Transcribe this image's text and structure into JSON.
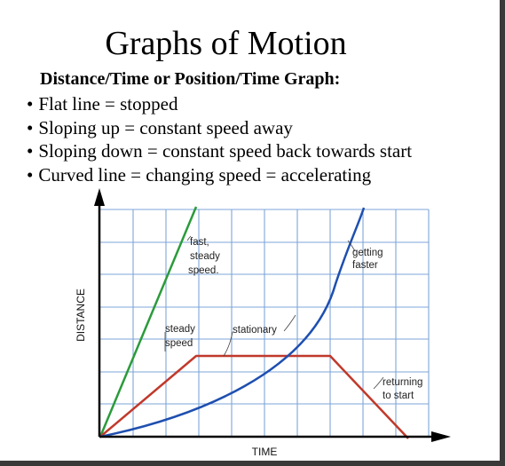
{
  "slide": {
    "title": "Graphs of Motion",
    "subtitle": "Distance/Time or Position/Time Graph:",
    "bullets": [
      "Flat line = stopped",
      "Sloping up = constant speed away",
      "Sloping down = constant speed back towards start",
      "Curved line = changing speed = accelerating"
    ]
  },
  "graph": {
    "xlabel": "TIME",
    "ylabel": "DISTANCE",
    "annotations": {
      "fast_steady_speed": [
        "fast,",
        "steady",
        "speed."
      ],
      "steady_speed": [
        "steady",
        "speed"
      ],
      "stationary": "stationary",
      "getting_faster": [
        "getting",
        "faster"
      ],
      "returning_to_start": [
        "returning",
        "to start"
      ]
    },
    "colors": {
      "grid": "#7ea6d8",
      "fast_line": "#2a9b3a",
      "round_trip_line": "#c0392b",
      "accelerating_curve": "#1e4fb0",
      "axes": "#000000"
    }
  }
}
